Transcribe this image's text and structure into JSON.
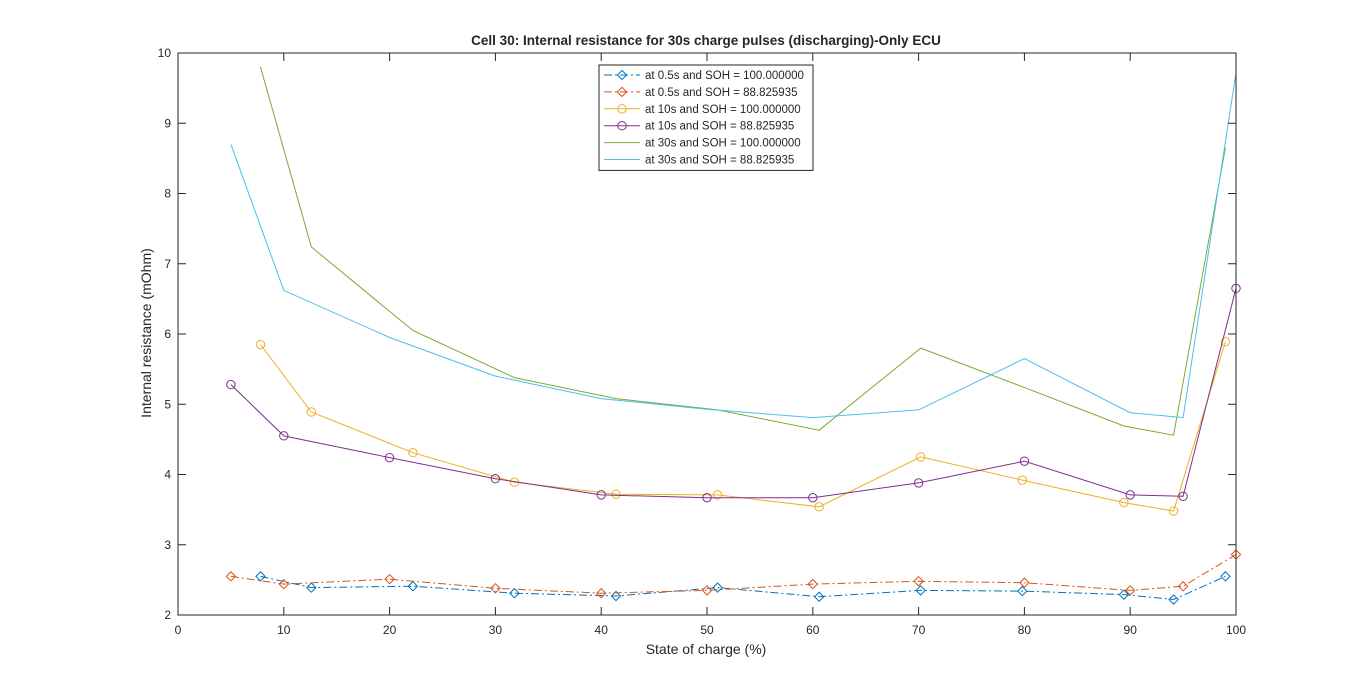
{
  "chart_data": {
    "type": "line",
    "title": "Cell 30: Internal resistance for 30s charge pulses (discharging)-Only ECU",
    "xlabel": "State of charge (%)",
    "ylabel": "Internal resistance (mOhm)",
    "xlim": [
      0,
      100
    ],
    "ylim": [
      2,
      10
    ],
    "xticks": [
      0,
      10,
      20,
      30,
      40,
      50,
      60,
      70,
      80,
      90,
      100
    ],
    "yticks": [
      2,
      3,
      4,
      5,
      6,
      7,
      8,
      9,
      10
    ],
    "grid": false,
    "legend_position": "top-center",
    "series": [
      {
        "name": "at 0.5s and SOH = 100.000000",
        "color": "#0072BD",
        "line_style": "dashdot",
        "marker": "diamond",
        "x": [
          7.8,
          12.6,
          22.2,
          31.8,
          41.4,
          51.0,
          60.6,
          70.2,
          79.8,
          89.4,
          94.1,
          99.0
        ],
        "y": [
          2.55,
          2.39,
          2.41,
          2.31,
          2.27,
          2.39,
          2.26,
          2.35,
          2.34,
          2.29,
          2.22,
          2.55
        ]
      },
      {
        "name": "at 0.5s and SOH = 88.825935",
        "color": "#D95319",
        "line_style": "dashdot",
        "marker": "diamond",
        "x": [
          5.0,
          10.0,
          20.0,
          30.0,
          40.0,
          50.0,
          60.0,
          70.0,
          80.0,
          90.0,
          95.0,
          100.0
        ],
        "y": [
          2.55,
          2.44,
          2.51,
          2.38,
          2.31,
          2.35,
          2.44,
          2.48,
          2.46,
          2.35,
          2.41,
          2.86
        ]
      },
      {
        "name": "at 10s and SOH = 100.000000",
        "color": "#EDB120",
        "line_style": "solid",
        "marker": "circle",
        "x": [
          7.8,
          12.6,
          22.2,
          31.8,
          41.4,
          51.0,
          60.6,
          70.2,
          79.8,
          89.4,
          94.1,
          99.0
        ],
        "y": [
          5.85,
          4.89,
          4.31,
          3.89,
          3.72,
          3.71,
          3.54,
          4.25,
          3.92,
          3.6,
          3.48,
          5.89
        ]
      },
      {
        "name": "at 10s and SOH = 88.825935",
        "color": "#7E2F8E",
        "line_style": "solid",
        "marker": "circle",
        "x": [
          5.0,
          10.0,
          20.0,
          30.0,
          40.0,
          50.0,
          60.0,
          70.0,
          80.0,
          90.0,
          95.0,
          100.0
        ],
        "y": [
          5.28,
          4.55,
          4.24,
          3.94,
          3.71,
          3.67,
          3.67,
          3.88,
          4.19,
          3.71,
          3.69,
          6.65
        ]
      },
      {
        "name": "at 30s and SOH = 100.000000",
        "color": "#77AC30",
        "line_style": "solid",
        "marker": "none",
        "x": [
          7.8,
          12.6,
          22.2,
          31.8,
          41.4,
          51.0,
          60.6,
          70.2,
          79.8,
          89.4,
          94.1,
          99.0
        ],
        "y": [
          9.8,
          7.24,
          6.05,
          5.38,
          5.08,
          4.92,
          4.63,
          5.8,
          5.25,
          4.69,
          4.56,
          8.65
        ]
      },
      {
        "name": "at 30s and SOH = 88.825935",
        "color": "#4DBEEE",
        "line_style": "solid",
        "marker": "none",
        "x": [
          5.0,
          10.0,
          20.0,
          30.0,
          40.0,
          50.0,
          60.0,
          70.0,
          80.0,
          90.0,
          95.0,
          100.0
        ],
        "y": [
          8.7,
          6.62,
          5.95,
          5.4,
          5.08,
          4.93,
          4.81,
          4.92,
          5.65,
          4.88,
          4.81,
          9.72
        ]
      }
    ]
  }
}
